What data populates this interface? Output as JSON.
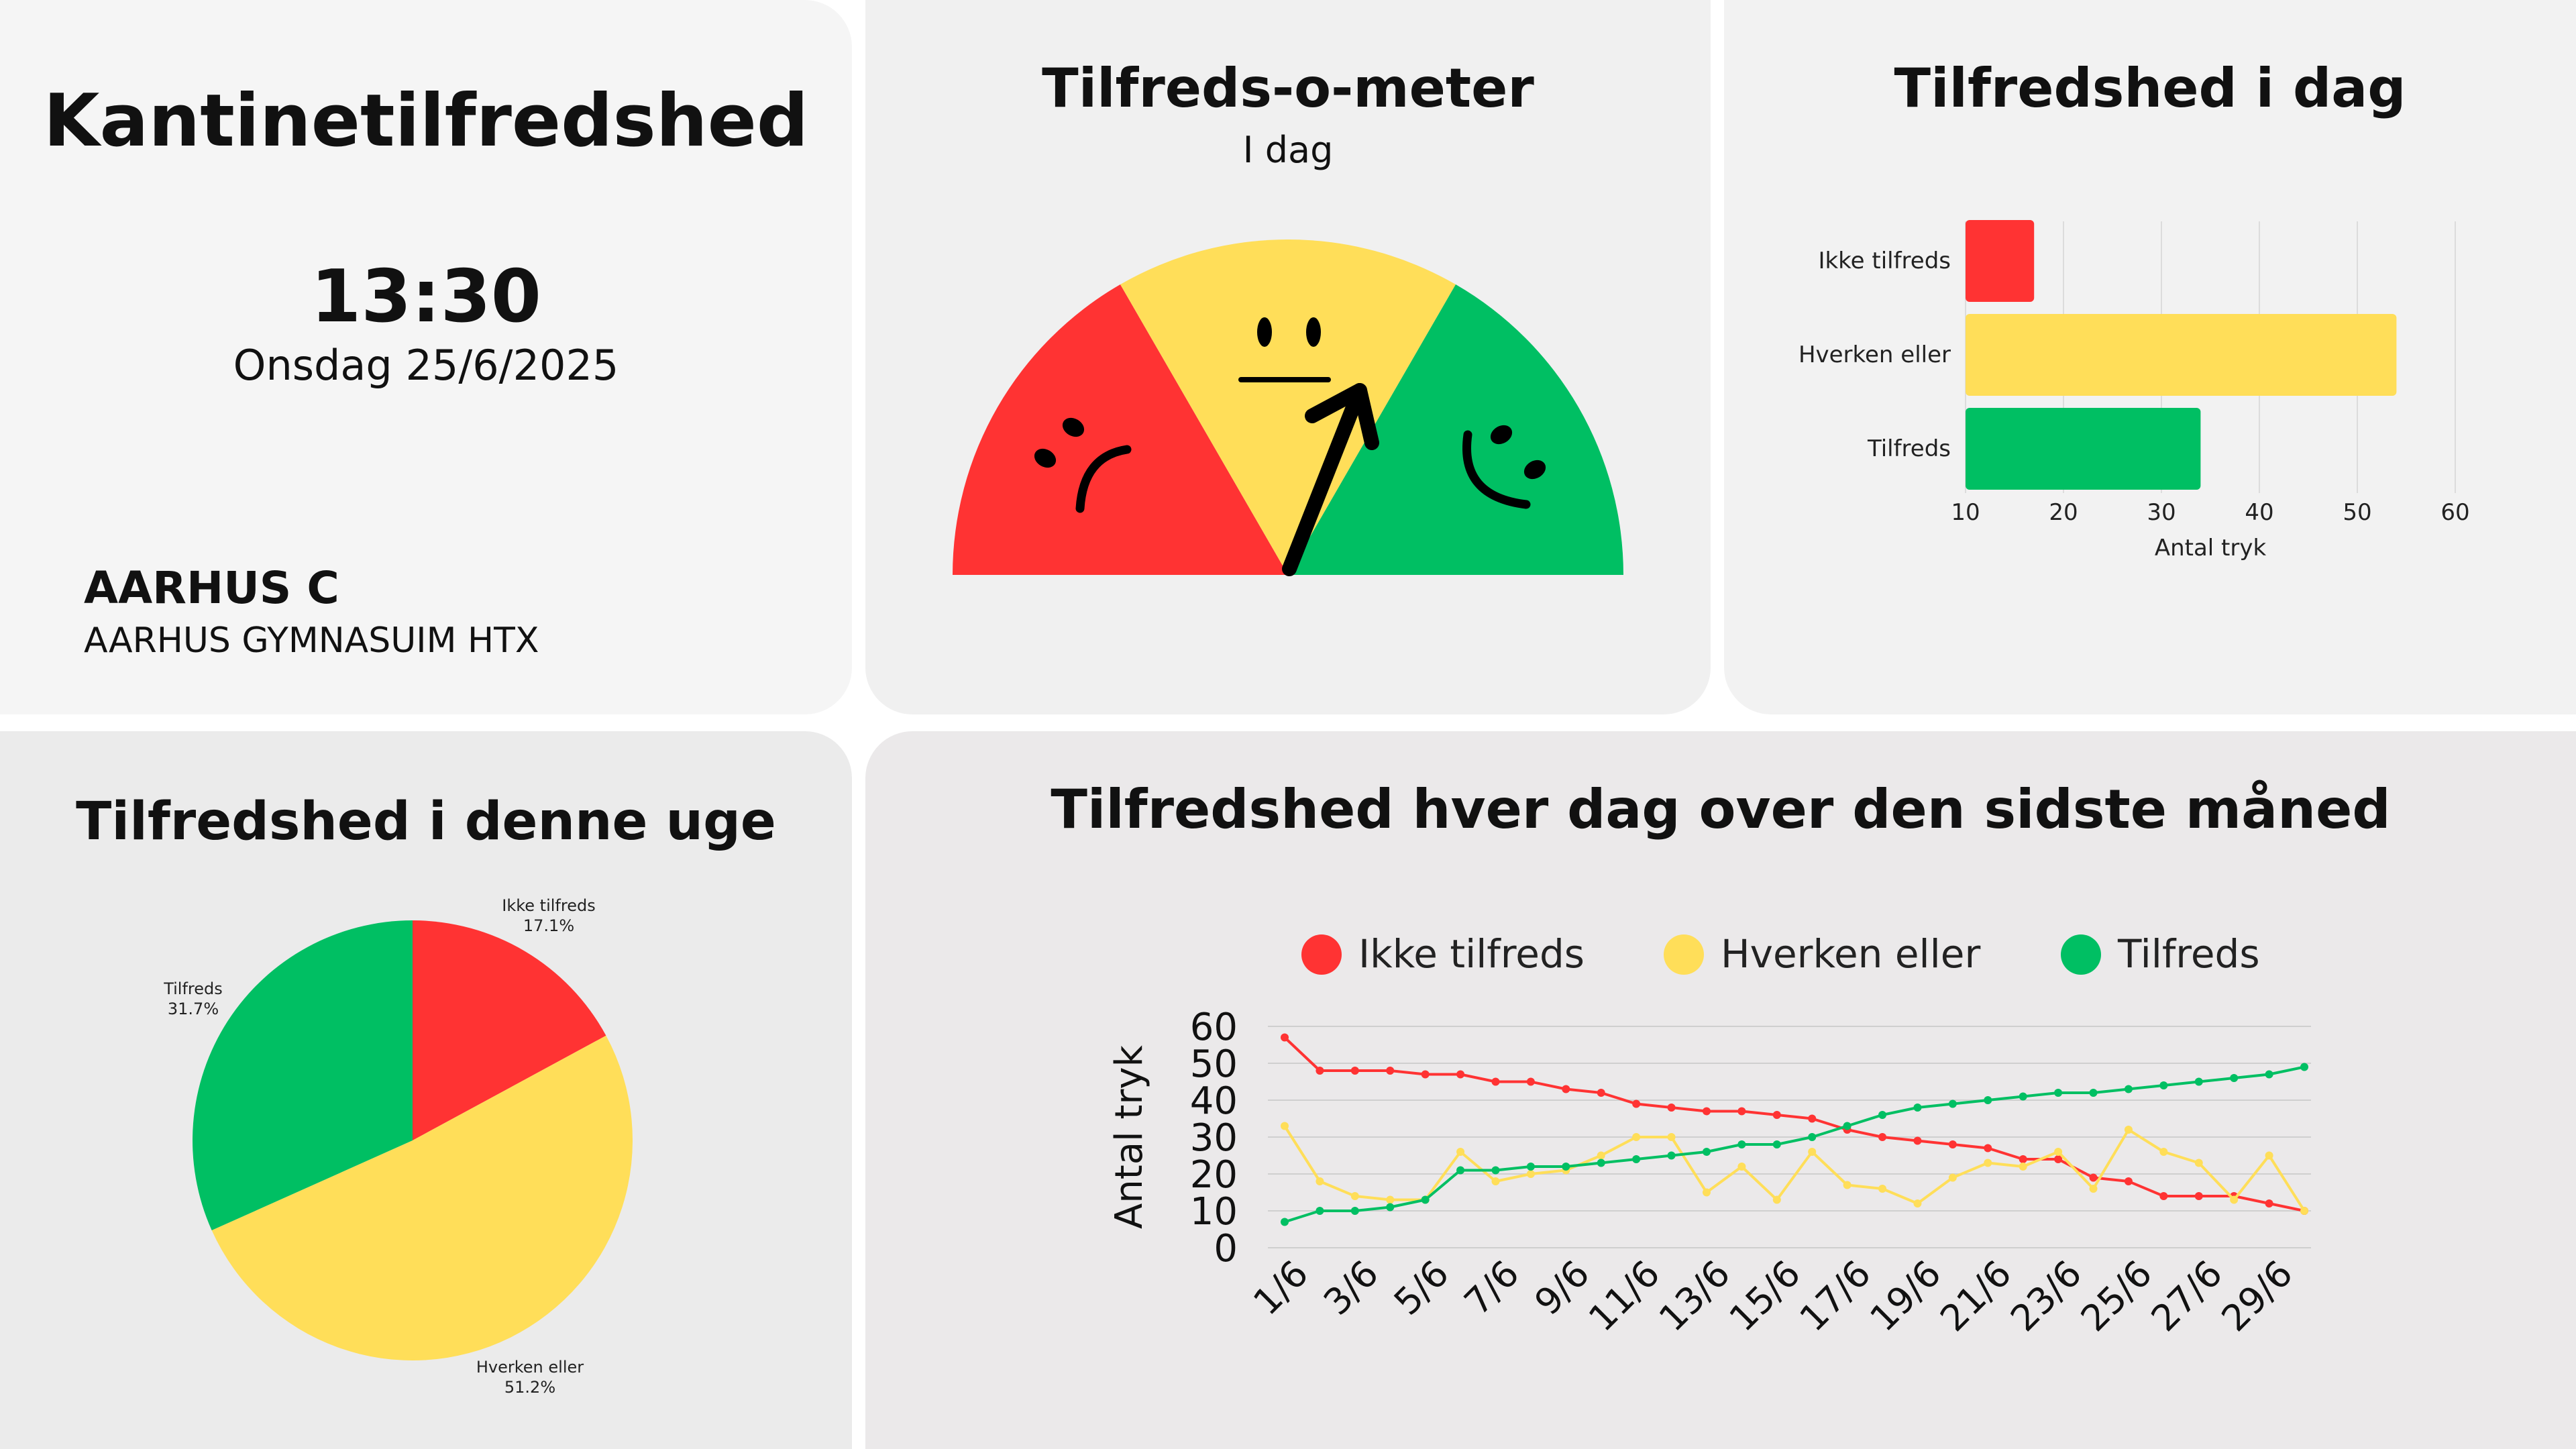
{
  "info": {
    "title": "Kantinetilfredshed",
    "time": "13:30",
    "date": "Onsdag 25/6/2025",
    "location": "AARHUS C",
    "school": "AARHUS GYMNASUIM HTX"
  },
  "gauge": {
    "title": "Tilfreds-o-meter",
    "subtitle": "I dag",
    "colors": {
      "bad": "#ff3333",
      "neutral": "#ffde59",
      "good": "#00bf63"
    }
  },
  "today": {
    "title": "Tilfredshed i dag"
  },
  "week": {
    "title": "Tilfredshed i denne uge"
  },
  "month": {
    "title": "Tilfredshed hver dag over den sidste måned"
  },
  "chart_data": [
    {
      "type": "bar",
      "orientation": "horizontal",
      "categories": [
        "Ikke tilfreds",
        "Hverken eller",
        "Tilfreds"
      ],
      "values": [
        17,
        54,
        34
      ],
      "colors": [
        "#ff3333",
        "#ffde59",
        "#00bf63"
      ],
      "xlabel": "Antal tryk",
      "xticks": [
        "10",
        "20",
        "30",
        "40",
        "50",
        "60"
      ],
      "xlim": [
        10,
        60
      ],
      "grid": true
    },
    {
      "type": "pie",
      "labels": [
        "Ikke tilfreds",
        "Hverken eller",
        "Tilfreds"
      ],
      "values": [
        17.1,
        51.2,
        31.7
      ],
      "value_labels": [
        "17.1%",
        "51.2%",
        "31.7%"
      ],
      "colors": [
        "#ff3333",
        "#ffde59",
        "#00bf63"
      ]
    },
    {
      "type": "line",
      "ylabel": "Antal tryk",
      "ylim": [
        0,
        60
      ],
      "yticks": [
        "0",
        "10",
        "20",
        "30",
        "40",
        "50",
        "60"
      ],
      "legend": "top",
      "grid": true,
      "x": [
        "1/6",
        "2/6",
        "3/6",
        "4/6",
        "5/6",
        "6/6",
        "7/6",
        "8/6",
        "9/6",
        "10/6",
        "11/6",
        "12/6",
        "13/6",
        "14/6",
        "15/6",
        "16/6",
        "17/6",
        "18/6",
        "19/6",
        "20/6",
        "21/6",
        "22/6",
        "23/6",
        "24/6",
        "25/6",
        "26/6",
        "27/6",
        "28/6",
        "29/6",
        "30/6"
      ],
      "xtick_labels": [
        "1/6",
        "3/6",
        "5/6",
        "7/6",
        "9/6",
        "11/6",
        "13/6",
        "15/6",
        "17/6",
        "19/6",
        "21/6",
        "23/6",
        "25/6",
        "27/6",
        "29/6"
      ],
      "series": [
        {
          "name": "Ikke tilfreds",
          "color": "#ff3333",
          "values": [
            57,
            48,
            48,
            48,
            47,
            47,
            45,
            45,
            43,
            42,
            39,
            38,
            37,
            37,
            36,
            35,
            32,
            30,
            29,
            28,
            27,
            24,
            24,
            19,
            18,
            14,
            14,
            14,
            12,
            10
          ]
        },
        {
          "name": "Hverken eller",
          "color": "#ffde59",
          "values": [
            33,
            18,
            14,
            13,
            13,
            26,
            18,
            20,
            21,
            25,
            30,
            30,
            15,
            22,
            13,
            26,
            17,
            16,
            12,
            19,
            23,
            22,
            26,
            16,
            32,
            26,
            23,
            13,
            25,
            10
          ]
        },
        {
          "name": "Tilfreds",
          "color": "#00bf63",
          "values": [
            7,
            10,
            10,
            11,
            13,
            21,
            21,
            22,
            22,
            23,
            24,
            25,
            26,
            28,
            28,
            30,
            33,
            36,
            38,
            39,
            40,
            41,
            42,
            42,
            43,
            44,
            45,
            46,
            47,
            49
          ]
        }
      ]
    }
  ]
}
